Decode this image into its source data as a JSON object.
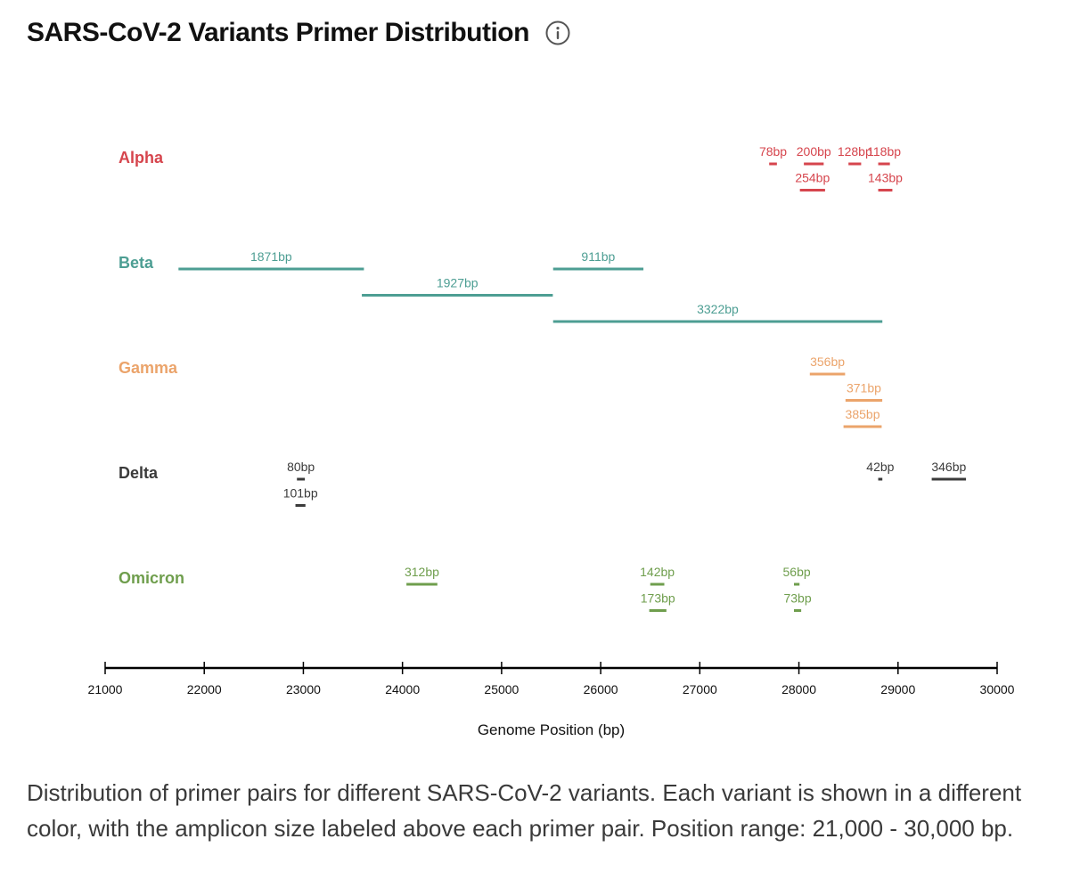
{
  "title": "SARS-CoV-2 Variants Primer Distribution",
  "info_icon": "info-circle-icon",
  "caption": "Distribution of primer pairs for different SARS-CoV-2 variants. Each variant is shown in a different color, with the amplicon size labeled above each primer pair. Position range: 21,000 - 30,000 bp.",
  "chart_data": {
    "type": "range",
    "xlabel": "Genome Position (bp)",
    "xlim": [
      21000,
      30000
    ],
    "xticks": [
      21000,
      22000,
      23000,
      24000,
      25000,
      26000,
      27000,
      28000,
      29000,
      30000
    ],
    "variants": [
      {
        "name": "Alpha",
        "color": "#d6454d",
        "primers": [
          {
            "start": 27700,
            "end": 27778,
            "label": "78bp",
            "row": 0
          },
          {
            "start": 28050,
            "end": 28250,
            "label": "200bp",
            "row": 0
          },
          {
            "start": 28500,
            "end": 28628,
            "label": "128bp",
            "row": 0
          },
          {
            "start": 28800,
            "end": 28918,
            "label": "118bp",
            "row": 0
          },
          {
            "start": 28010,
            "end": 28264,
            "label": "254bp",
            "row": 1
          },
          {
            "start": 28800,
            "end": 28943,
            "label": "143bp",
            "row": 1
          }
        ]
      },
      {
        "name": "Beta",
        "color": "#4d9e93",
        "primers": [
          {
            "start": 21740,
            "end": 23611,
            "label": "1871bp",
            "row": 0
          },
          {
            "start": 25520,
            "end": 26431,
            "label": "911bp",
            "row": 0
          },
          {
            "start": 23590,
            "end": 25517,
            "label": "1927bp",
            "row": 1
          },
          {
            "start": 25520,
            "end": 28842,
            "label": "3322bp",
            "row": 2
          }
        ]
      },
      {
        "name": "Gamma",
        "color": "#eba46b",
        "primers": [
          {
            "start": 28110,
            "end": 28466,
            "label": "356bp",
            "row": 0
          },
          {
            "start": 28470,
            "end": 28841,
            "label": "371bp",
            "row": 1
          },
          {
            "start": 28450,
            "end": 28835,
            "label": "385bp",
            "row": 2
          }
        ]
      },
      {
        "name": "Delta",
        "color": "#3b3b3b",
        "primers": [
          {
            "start": 22935,
            "end": 23015,
            "label": "80bp",
            "row": 0
          },
          {
            "start": 28800,
            "end": 28842,
            "label": "42bp",
            "row": 0
          },
          {
            "start": 29340,
            "end": 29686,
            "label": "346bp",
            "row": 0
          },
          {
            "start": 22920,
            "end": 23021,
            "label": "101bp",
            "row": 1
          }
        ]
      },
      {
        "name": "Omicron",
        "color": "#6f9e4d",
        "primers": [
          {
            "start": 24040,
            "end": 24352,
            "label": "312bp",
            "row": 0
          },
          {
            "start": 26500,
            "end": 26642,
            "label": "142bp",
            "row": 0
          },
          {
            "start": 27950,
            "end": 28006,
            "label": "56bp",
            "row": 0
          },
          {
            "start": 26490,
            "end": 26663,
            "label": "173bp",
            "row": 1
          },
          {
            "start": 27950,
            "end": 28023,
            "label": "73bp",
            "row": 1
          }
        ]
      }
    ]
  }
}
